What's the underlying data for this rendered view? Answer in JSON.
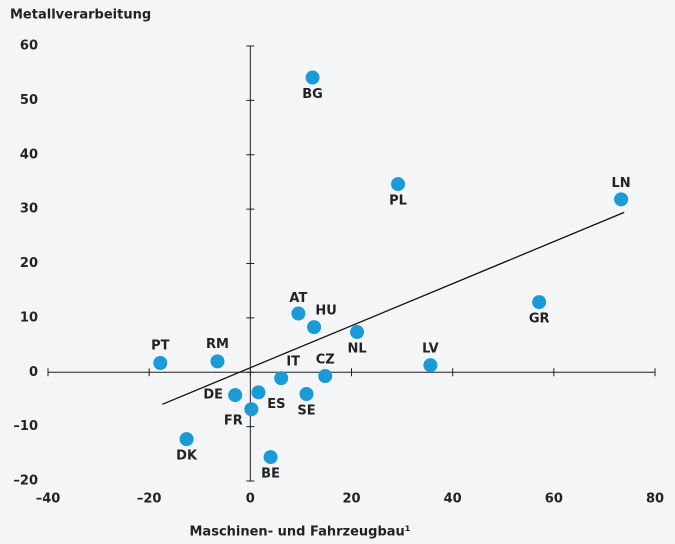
{
  "chart_data": {
    "type": "scatter",
    "title": "Metallverarbeitung",
    "x_label": "Maschinen- und Fahrzeugbau¹",
    "color": "#1a9ad6",
    "labels": [
      "BG",
      "PL",
      "LN",
      "GR",
      "AT",
      "HU",
      "NL",
      "LV",
      "PT",
      "RM",
      "IT",
      "CZ",
      "DE",
      "ES",
      "FR",
      "SE",
      "DK",
      "BE"
    ],
    "x": [
      12.3,
      29.2,
      73.3,
      57.1,
      9.5,
      12.6,
      21.1,
      35.6,
      -17.8,
      -6.5,
      6.1,
      14.8,
      -3.0,
      1.6,
      0.2,
      11.1,
      -12.6,
      4.0
    ],
    "y": [
      54.2,
      34.6,
      31.8,
      12.9,
      10.8,
      8.3,
      7.4,
      1.3,
      1.7,
      2.0,
      -1.1,
      -0.7,
      -4.2,
      -3.7,
      -6.8,
      -4.0,
      -12.3,
      -15.6
    ],
    "trend_line": {
      "x": [
        -17.4,
        73.9
      ],
      "y": [
        -5.9,
        29.4
      ]
    },
    "xlim": [
      -40,
      80
    ],
    "ylim": [
      -20,
      60
    ],
    "xticks": [
      {
        "value": -40,
        "label": "–40"
      },
      {
        "value": -20,
        "label": "–20"
      },
      0,
      20,
      40,
      60,
      80
    ],
    "yticks": [
      {
        "value": -20,
        "label": "–20"
      },
      {
        "value": -10,
        "label": "–10"
      },
      0,
      10,
      20,
      30,
      40,
      50,
      60
    ]
  }
}
